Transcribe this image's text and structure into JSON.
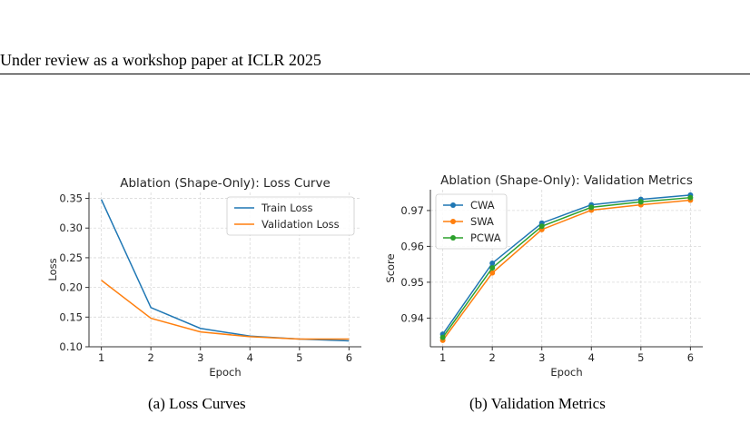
{
  "header": {
    "running_title": "Under review as a workshop paper at ICLR 2025"
  },
  "captions": {
    "left": "(a)  Loss Curves",
    "right": "(b)  Validation Metrics"
  },
  "chart_data": [
    {
      "type": "line",
      "title": "Ablation (Shape-Only): Loss Curve",
      "xlabel": "Epoch",
      "ylabel": "Loss",
      "x": [
        1,
        2,
        3,
        4,
        5,
        6
      ],
      "xlim": [
        0.75,
        6.25
      ],
      "ylim": [
        0.1,
        0.36
      ],
      "xticks": [
        1,
        2,
        3,
        4,
        5,
        6
      ],
      "yticks": [
        0.1,
        0.15,
        0.2,
        0.25,
        0.3,
        0.35
      ],
      "ytick_labels": [
        "0.10",
        "0.15",
        "0.20",
        "0.25",
        "0.30",
        "0.35"
      ],
      "grid": true,
      "legend": "top-right",
      "markers": false,
      "series": [
        {
          "name": "Train Loss",
          "color": "#1f77b4",
          "values": [
            0.348,
            0.166,
            0.131,
            0.118,
            0.113,
            0.11
          ]
        },
        {
          "name": "Validation Loss",
          "color": "#ff7f0e",
          "values": [
            0.212,
            0.148,
            0.125,
            0.117,
            0.113,
            0.113
          ]
        }
      ]
    },
    {
      "type": "line",
      "title": "Ablation (Shape-Only): Validation Metrics",
      "xlabel": "Epoch",
      "ylabel": "Score",
      "x": [
        1,
        2,
        3,
        4,
        5,
        6
      ],
      "xlim": [
        0.75,
        6.25
      ],
      "ylim": [
        0.932,
        0.9758
      ],
      "xticks": [
        1,
        2,
        3,
        4,
        5,
        6
      ],
      "yticks": [
        0.94,
        0.95,
        0.96,
        0.97
      ],
      "ytick_labels": [
        "0.94",
        "0.95",
        "0.96",
        "0.97"
      ],
      "grid": true,
      "legend": "top-left",
      "markers": true,
      "series": [
        {
          "name": "CWA",
          "color": "#1f77b4",
          "values": [
            0.9355,
            0.9553,
            0.9665,
            0.9716,
            0.9731,
            0.9743
          ]
        },
        {
          "name": "SWA",
          "color": "#ff7f0e",
          "values": [
            0.9338,
            0.9526,
            0.9647,
            0.9701,
            0.9716,
            0.9729
          ]
        },
        {
          "name": "PCWA",
          "color": "#2ca02c",
          "values": [
            0.9346,
            0.954,
            0.9656,
            0.9709,
            0.9724,
            0.9736
          ]
        }
      ]
    }
  ]
}
